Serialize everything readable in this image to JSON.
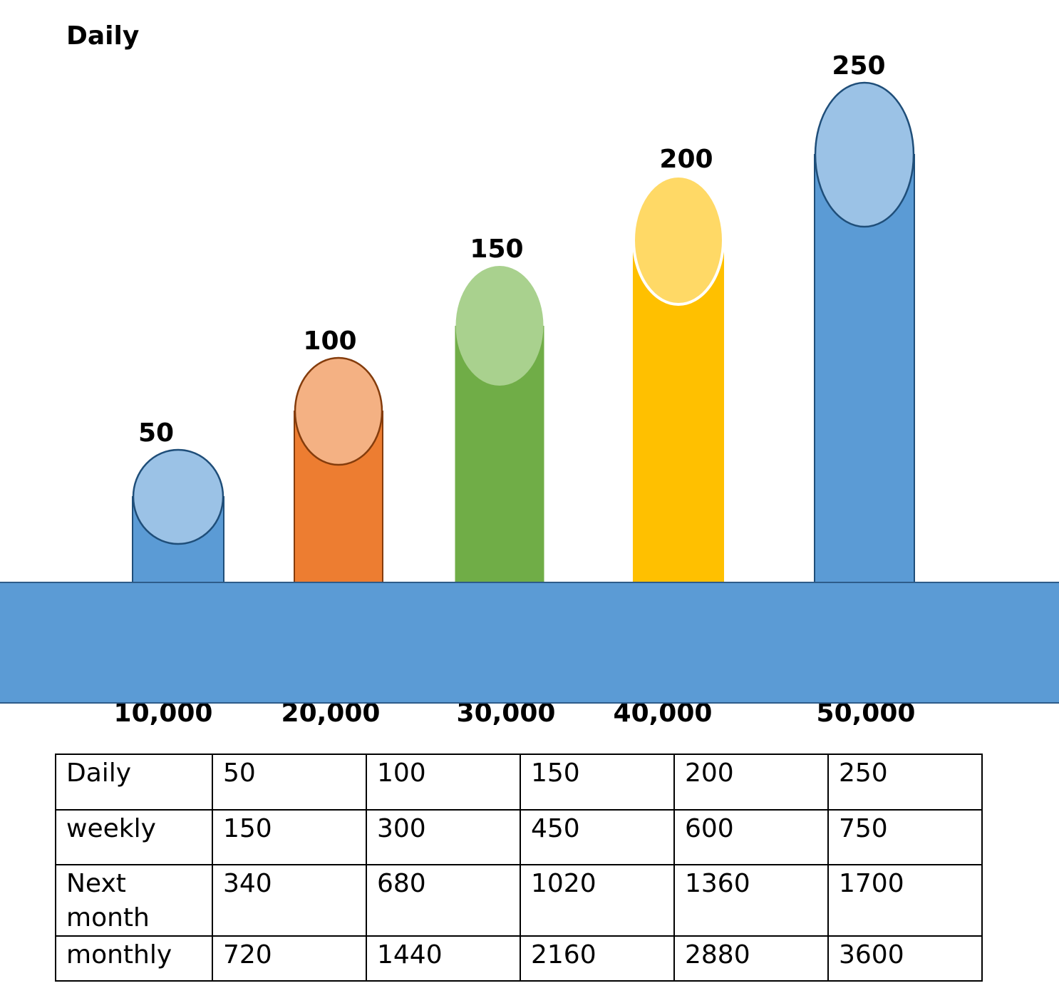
{
  "chart_data": {
    "type": "bar",
    "title": "Daily",
    "categories": [
      "10,000",
      "20,000",
      "30,000",
      "40,000",
      "50,000"
    ],
    "values": [
      50,
      100,
      150,
      200,
      250
    ],
    "ylim": [
      0,
      250
    ],
    "grid": false,
    "legend": "none",
    "colors": [
      "#5b9bd5",
      "#ed7d31",
      "#70ad47",
      "#ffc000",
      "#5b9bd5"
    ],
    "top_colors": [
      "#9bc2e6",
      "#f4b183",
      "#a9d18e",
      "#ffd966",
      "#9bc2e6"
    ],
    "base_color": "#5b9bd5"
  },
  "table": {
    "rows": [
      {
        "label": "Daily",
        "values": [
          "50",
          "100",
          "150",
          "200",
          "250"
        ]
      },
      {
        "label": "weekly",
        "values": [
          "150",
          "300",
          "450",
          "600",
          "750"
        ]
      },
      {
        "label": "Next month",
        "values": [
          "340",
          "680",
          "1020",
          "1360",
          "1700"
        ]
      },
      {
        "label": "monthly",
        "values": [
          "720",
          "1440",
          "2160",
          "2880",
          "3600"
        ]
      }
    ]
  }
}
